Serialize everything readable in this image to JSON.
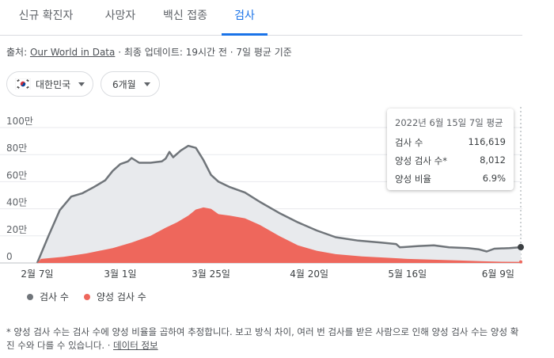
{
  "tabs": [
    {
      "label": "신규 확진자",
      "active": false
    },
    {
      "label": "사망자",
      "active": false
    },
    {
      "label": "백신 접종",
      "active": false
    },
    {
      "label": "검사",
      "active": true
    }
  ],
  "source": {
    "prefix": "출처: ",
    "link": "Our World in Data",
    "suffix": " · 최종 업데이트: 19시간 전 · 7일 평균 기준"
  },
  "filters": {
    "country": {
      "label": "대한민국",
      "flag_icon": "south-korea-flag-icon"
    },
    "range": {
      "label": "6개월"
    }
  },
  "colors": {
    "tests": "#70757a",
    "positive": "#ee675c",
    "tests_fill": "#e8eaed",
    "accent": "#1a73e8"
  },
  "chart_data": {
    "type": "area",
    "x_tick_labels": [
      "2월 7일",
      "3월 1일",
      "3월 25일",
      "4월 20일",
      "5월 16일",
      "6월 9일"
    ],
    "y_tick_labels": [
      "100만",
      "80만",
      "60만",
      "40만",
      "20만",
      "0"
    ],
    "ylim": [
      0,
      1000000
    ],
    "y_ticks": [
      0,
      200000,
      400000,
      600000,
      800000,
      1000000
    ],
    "x_start": "2022-02-07",
    "x_end": "2022-06-15",
    "x_ticks": [
      "2022-02-07",
      "2022-03-01",
      "2022-03-25",
      "2022-04-20",
      "2022-05-16",
      "2022-06-09"
    ],
    "grid": true,
    "legend_position": "bottom-left",
    "series": [
      {
        "name": "검사 수",
        "points": [
          [
            "2022-02-07",
            0
          ],
          [
            "2022-02-10",
            200000
          ],
          [
            "2022-02-13",
            390000
          ],
          [
            "2022-02-16",
            490000
          ],
          [
            "2022-02-19",
            515000
          ],
          [
            "2022-02-22",
            560000
          ],
          [
            "2022-02-25",
            610000
          ],
          [
            "2022-02-27",
            680000
          ],
          [
            "2022-03-01",
            730000
          ],
          [
            "2022-03-03",
            750000
          ],
          [
            "2022-03-04",
            775000
          ],
          [
            "2022-03-06",
            740000
          ],
          [
            "2022-03-09",
            740000
          ],
          [
            "2022-03-12",
            750000
          ],
          [
            "2022-03-13",
            770000
          ],
          [
            "2022-03-14",
            820000
          ],
          [
            "2022-03-15",
            780000
          ],
          [
            "2022-03-17",
            830000
          ],
          [
            "2022-03-19",
            865000
          ],
          [
            "2022-03-21",
            850000
          ],
          [
            "2022-03-23",
            760000
          ],
          [
            "2022-03-25",
            650000
          ],
          [
            "2022-03-27",
            600000
          ],
          [
            "2022-03-30",
            560000
          ],
          [
            "2022-04-03",
            520000
          ],
          [
            "2022-04-07",
            450000
          ],
          [
            "2022-04-12",
            370000
          ],
          [
            "2022-04-17",
            300000
          ],
          [
            "2022-04-22",
            240000
          ],
          [
            "2022-04-27",
            190000
          ],
          [
            "2022-05-03",
            165000
          ],
          [
            "2022-05-09",
            150000
          ],
          [
            "2022-05-13",
            140000
          ],
          [
            "2022-05-14",
            115000
          ],
          [
            "2022-05-19",
            125000
          ],
          [
            "2022-05-23",
            130000
          ],
          [
            "2022-05-27",
            115000
          ],
          [
            "2022-06-01",
            110000
          ],
          [
            "2022-06-04",
            100000
          ],
          [
            "2022-06-06",
            85000
          ],
          [
            "2022-06-08",
            105000
          ],
          [
            "2022-06-12",
            110000
          ],
          [
            "2022-06-15",
            116619
          ]
        ]
      },
      {
        "name": "양성 검사 수",
        "points": [
          [
            "2022-02-07",
            0
          ],
          [
            "2022-02-08",
            30000
          ],
          [
            "2022-02-14",
            45000
          ],
          [
            "2022-02-20",
            70000
          ],
          [
            "2022-02-27",
            110000
          ],
          [
            "2022-03-04",
            150000
          ],
          [
            "2022-03-09",
            200000
          ],
          [
            "2022-03-13",
            260000
          ],
          [
            "2022-03-16",
            300000
          ],
          [
            "2022-03-19",
            350000
          ],
          [
            "2022-03-21",
            395000
          ],
          [
            "2022-03-23",
            410000
          ],
          [
            "2022-03-25",
            400000
          ],
          [
            "2022-03-27",
            360000
          ],
          [
            "2022-03-30",
            350000
          ],
          [
            "2022-04-03",
            330000
          ],
          [
            "2022-04-07",
            280000
          ],
          [
            "2022-04-12",
            200000
          ],
          [
            "2022-04-17",
            130000
          ],
          [
            "2022-04-22",
            90000
          ],
          [
            "2022-04-27",
            65000
          ],
          [
            "2022-05-04",
            48000
          ],
          [
            "2022-05-11",
            38000
          ],
          [
            "2022-05-16",
            30000
          ],
          [
            "2022-05-23",
            24000
          ],
          [
            "2022-05-30",
            18000
          ],
          [
            "2022-06-05",
            12000
          ],
          [
            "2022-06-10",
            9000
          ],
          [
            "2022-06-15",
            8012
          ]
        ]
      }
    ]
  },
  "tooltip": {
    "title": "2022년 6월 15일 7일 평균",
    "rows": [
      {
        "label": "검사 수",
        "value": "116,619"
      },
      {
        "label": "양성 검사 수*",
        "value": "8,012"
      },
      {
        "label": "양성 비율",
        "value": "6.9%"
      }
    ]
  },
  "legend": [
    {
      "label": "검사 수"
    },
    {
      "label": "양성 검사 수"
    }
  ],
  "footnote": {
    "text": "* 양성 검사 수는 검사 수에 양성 비율을 곱하여 추정합니다. 보고 방식 차이, 여러 번 검사를 받은 사람으로 인해 양성 검사 수는 양성 확진 수와 다를 수 있습니다. · ",
    "link": "데이터 정보"
  }
}
